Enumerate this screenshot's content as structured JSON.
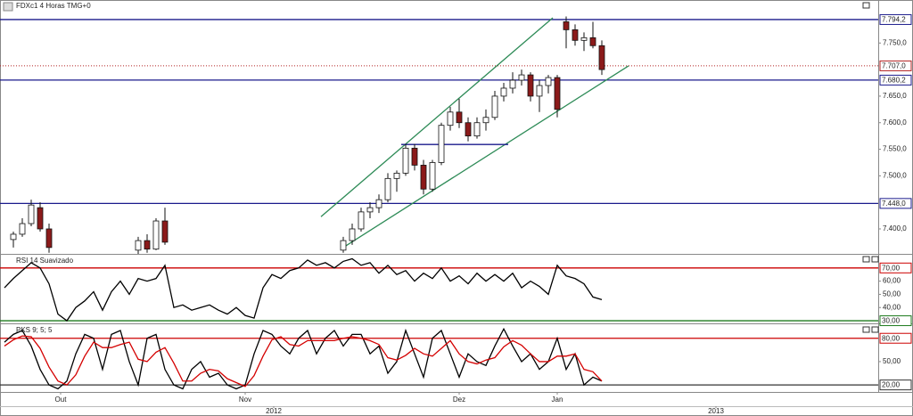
{
  "chart_data": [
    {
      "type": "candlestick",
      "title": "FDXc1 4 Horas TMG+0",
      "xlim": [
        -0.5,
        98
      ],
      "ylim": [
        7353,
        7831
      ],
      "yticks": [
        {
          "value": 7400,
          "label": "7.400,0"
        },
        {
          "value": 7500,
          "label": "7.500,0"
        },
        {
          "value": 7550,
          "label": "7.550,0"
        },
        {
          "value": 7600,
          "label": "7.600,0"
        },
        {
          "value": 7650,
          "label": "7.650,0"
        },
        {
          "value": 7750,
          "label": "7.750,0"
        }
      ],
      "levels": [
        {
          "value": 7794.2,
          "label": "7.794,2",
          "color": "#1a1a8c"
        },
        {
          "value": 7707.0,
          "label": "7.707,0",
          "color": "#b22222",
          "line_style": "dotted"
        },
        {
          "value": 7680.2,
          "label": "7.680,2",
          "color": "#1a1a8c"
        },
        {
          "value": 7448.0,
          "label": "7.448,0",
          "color": "#1a1a8c"
        }
      ],
      "trendlines": [
        {
          "x": [
            35.5,
            61.5
          ],
          "y": [
            7423,
            7797.5
          ],
          "color": "#2e8b57"
        },
        {
          "x": [
            38,
            70
          ],
          "y": [
            7365,
            7707
          ],
          "color": "#2e8b57"
        },
        {
          "x": [
            44.5,
            56.5
          ],
          "y": [
            7559,
            7559
          ],
          "color": "#1a1a8c"
        }
      ],
      "up_color": "#ffffff",
      "down_color": "#8b1a1a",
      "x": [
        1,
        2,
        3,
        4,
        5,
        15,
        16,
        17,
        18,
        38,
        39,
        40,
        41,
        42,
        43,
        44,
        45,
        46,
        47,
        48,
        49,
        50,
        51,
        52,
        53,
        54,
        55,
        56,
        57,
        58,
        59,
        60,
        61,
        62,
        63,
        64,
        65,
        66,
        67
      ],
      "open": [
        7380,
        7390,
        7410,
        7440,
        7400,
        7360,
        7378,
        7362,
        7415,
        7360,
        7378,
        7400,
        7432,
        7440,
        7455,
        7495,
        7505,
        7552,
        7520,
        7475,
        7525,
        7595,
        7620,
        7600,
        7575,
        7600,
        7610,
        7650,
        7665,
        7680,
        7690,
        7650,
        7670,
        7685,
        7790,
        7775,
        7755,
        7760,
        7745
      ],
      "high": [
        7395,
        7420,
        7455,
        7450,
        7410,
        7385,
        7390,
        7420,
        7440,
        7385,
        7410,
        7440,
        7450,
        7465,
        7505,
        7510,
        7560,
        7560,
        7530,
        7530,
        7600,
        7630,
        7645,
        7610,
        7610,
        7625,
        7660,
        7675,
        7695,
        7700,
        7695,
        7680,
        7690,
        7690,
        7800,
        7785,
        7770,
        7790,
        7755
      ],
      "low": [
        7365,
        7385,
        7405,
        7395,
        7355,
        7350,
        7355,
        7360,
        7370,
        7355,
        7370,
        7395,
        7420,
        7430,
        7450,
        7470,
        7500,
        7510,
        7465,
        7470,
        7520,
        7585,
        7590,
        7565,
        7570,
        7585,
        7605,
        7640,
        7655,
        7670,
        7640,
        7620,
        7655,
        7610,
        7740,
        7745,
        7735,
        7740,
        7690
      ],
      "close": [
        7390,
        7410,
        7445,
        7400,
        7365,
        7378,
        7362,
        7415,
        7375,
        7378,
        7400,
        7432,
        7440,
        7455,
        7495,
        7505,
        7552,
        7520,
        7475,
        7525,
        7595,
        7620,
        7600,
        7575,
        7600,
        7610,
        7650,
        7665,
        7680,
        7690,
        7650,
        7670,
        7685,
        7625,
        7775,
        7755,
        7760,
        7745,
        7700
      ]
    },
    {
      "type": "line",
      "title": "RSI 14 Suavizado",
      "xlim": [
        -0.5,
        98
      ],
      "ylim": [
        28,
        80
      ],
      "yticks": [
        {
          "value": 40,
          "label": "40,00"
        },
        {
          "value": 50,
          "label": "50,00"
        },
        {
          "value": 60,
          "label": "60,00"
        }
      ],
      "levels": [
        {
          "value": 70,
          "label": "70,00",
          "color": "#cc0000"
        },
        {
          "value": 30,
          "label": "30,00",
          "color": "#1e7b1e"
        }
      ],
      "color": "#000000",
      "x": [
        0,
        1,
        2,
        3,
        4,
        5,
        6,
        7,
        8,
        9,
        10,
        11,
        12,
        13,
        14,
        15,
        16,
        17,
        18,
        19,
        20,
        21,
        22,
        23,
        24,
        25,
        26,
        27,
        28,
        29,
        30,
        31,
        32,
        33,
        34,
        35,
        36,
        37,
        38,
        39,
        40,
        41,
        42,
        43,
        44,
        45,
        46,
        47,
        48,
        49,
        50,
        51,
        52,
        53,
        54,
        55,
        56,
        57,
        58,
        59,
        60,
        61,
        62,
        63,
        64,
        65,
        66,
        67
      ],
      "values": [
        55,
        62,
        68,
        74,
        70,
        58,
        35,
        30,
        40,
        45,
        52,
        38,
        52,
        60,
        50,
        62,
        60,
        62,
        72,
        40,
        42,
        38,
        40,
        42,
        38,
        35,
        40,
        34,
        32,
        55,
        65,
        62,
        68,
        70,
        76,
        72,
        74,
        70,
        75,
        77,
        72,
        74,
        66,
        72,
        65,
        68,
        60,
        66,
        62,
        70,
        60,
        64,
        58,
        66,
        60,
        65,
        60,
        66,
        55,
        60,
        56,
        50,
        72,
        64,
        62,
        58,
        48,
        46
      ]
    },
    {
      "type": "line",
      "title": "PKS 9; 5; 5",
      "xlim": [
        -0.5,
        98
      ],
      "ylim": [
        11,
        98
      ],
      "yticks": [
        {
          "value": 50,
          "label": "50,00"
        }
      ],
      "levels": [
        {
          "value": 80,
          "label": "80,00",
          "color": "#cc0000"
        },
        {
          "value": 20,
          "label": "20,00",
          "color": "#333333"
        }
      ],
      "xticks": [
        {
          "value": 6.3,
          "label": "Out"
        },
        {
          "value": 27,
          "label": "Nov"
        },
        {
          "value": 51,
          "label": "Dez"
        },
        {
          "value": 62,
          "label": "Jan"
        }
      ],
      "year_ticks": [
        {
          "value": 30.2,
          "label": "2012"
        },
        {
          "value": 79.8,
          "label": "2013"
        }
      ],
      "x": [
        0,
        1,
        2,
        3,
        4,
        5,
        6,
        7,
        8,
        9,
        10,
        11,
        12,
        13,
        14,
        15,
        16,
        17,
        18,
        19,
        20,
        21,
        22,
        23,
        24,
        25,
        26,
        27,
        28,
        29,
        30,
        31,
        32,
        33,
        34,
        35,
        36,
        37,
        38,
        39,
        40,
        41,
        42,
        43,
        44,
        45,
        46,
        47,
        48,
        49,
        50,
        51,
        52,
        53,
        54,
        55,
        56,
        57,
        58,
        59,
        60,
        61,
        62,
        63,
        64,
        65,
        66,
        67
      ],
      "series": [
        {
          "color": "#000000",
          "values": [
            75,
            85,
            90,
            70,
            40,
            20,
            15,
            25,
            60,
            85,
            80,
            40,
            85,
            90,
            50,
            20,
            80,
            85,
            40,
            20,
            15,
            40,
            50,
            30,
            35,
            20,
            15,
            20,
            60,
            90,
            85,
            70,
            60,
            80,
            90,
            60,
            80,
            90,
            70,
            85,
            85,
            60,
            70,
            35,
            50,
            90,
            60,
            30,
            80,
            90,
            60,
            30,
            60,
            50,
            45,
            70,
            92,
            70,
            50,
            60,
            40,
            50,
            80,
            40,
            60,
            20,
            30,
            25
          ]
        },
        {
          "color": "#d40000",
          "values": [
            70,
            78,
            83,
            82,
            67,
            43,
            25,
            20,
            33,
            57,
            75,
            68,
            68,
            72,
            75,
            53,
            50,
            62,
            68,
            48,
            25,
            25,
            35,
            40,
            38,
            28,
            23,
            18,
            32,
            57,
            78,
            82,
            72,
            70,
            77,
            77,
            77,
            77,
            80,
            82,
            80,
            77,
            72,
            55,
            52,
            58,
            67,
            60,
            57,
            67,
            77,
            60,
            50,
            47,
            52,
            55,
            69,
            77,
            71,
            60,
            50,
            50,
            57,
            57,
            60,
            40,
            37,
            25
          ]
        }
      ]
    }
  ]
}
